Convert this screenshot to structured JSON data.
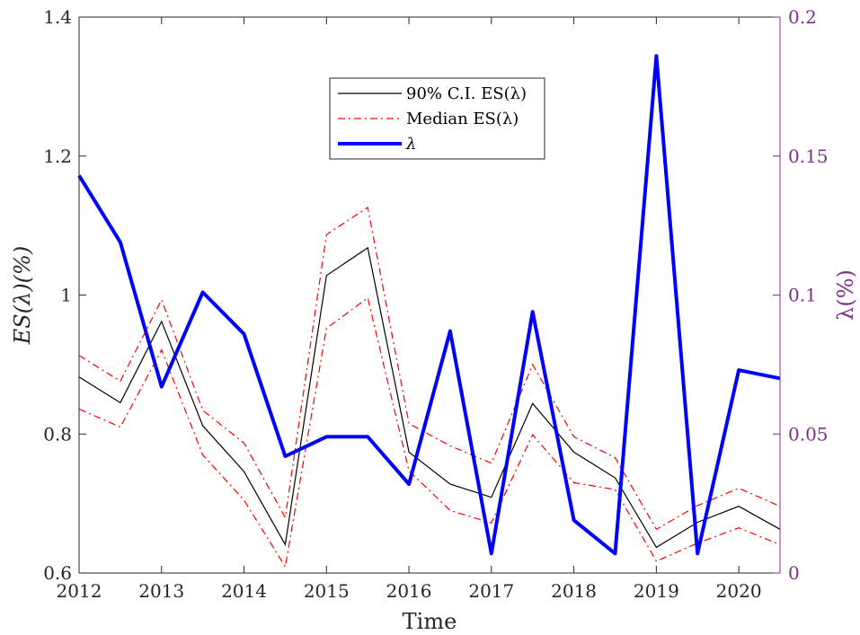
{
  "chart_data": {
    "type": "line",
    "xlabel": "Time",
    "ylabel_left": "ES(λ)(%)",
    "ylabel_right": "λ(%)",
    "x": [
      2012,
      2012.5,
      2013,
      2013.5,
      2014,
      2014.5,
      2015,
      2015.5,
      2016,
      2016.5,
      2017,
      2017.5,
      2018,
      2018.5,
      2019,
      2019.5,
      2020,
      2020.5
    ],
    "xlim": [
      2012,
      2020.5
    ],
    "x_ticks": [
      "2012",
      "2013",
      "2014",
      "2015",
      "2016",
      "2017",
      "2018",
      "2019",
      "2020"
    ],
    "ylim_left": [
      0.6,
      1.4
    ],
    "y_ticks_left": [
      "0.6",
      "0.8",
      "1",
      "1.2",
      "1.4"
    ],
    "ylim_right": [
      0,
      0.2
    ],
    "y_ticks_right": [
      "0",
      "0.05",
      "0.1",
      "0.15",
      "0.2"
    ],
    "legend_position": "top-center",
    "series": [
      {
        "name": "90% C.I. ES(λ)",
        "axis": "left",
        "style": "solid",
        "color": "#000000",
        "values": [
          0.882,
          0.845,
          0.962,
          0.812,
          0.746,
          0.641,
          1.028,
          1.068,
          0.774,
          0.728,
          0.709,
          0.844,
          0.774,
          0.737,
          0.637,
          0.673,
          0.696,
          0.663
        ]
      },
      {
        "name": "Median ES(λ)",
        "axis": "left",
        "style": "dashdot",
        "color": "#ff0000",
        "values": [
          0.913,
          0.876,
          0.993,
          0.834,
          0.787,
          0.68,
          1.087,
          1.126,
          0.815,
          0.783,
          0.758,
          0.9,
          0.796,
          0.766,
          0.663,
          0.697,
          0.722,
          0.696
        ]
      },
      {
        "name": "",
        "axis": "left",
        "style": "dashdot",
        "color": "#ff0000",
        "values": [
          0.836,
          0.81,
          0.921,
          0.77,
          0.705,
          0.609,
          0.952,
          0.996,
          0.747,
          0.69,
          0.672,
          0.799,
          0.73,
          0.72,
          0.617,
          0.643,
          0.665,
          0.641
        ]
      },
      {
        "name": "λ",
        "axis": "right",
        "style": "solid-thick",
        "color": "#0000ff",
        "values": [
          0.143,
          0.119,
          0.067,
          0.101,
          0.086,
          0.042,
          0.049,
          0.049,
          0.032,
          0.087,
          0.007,
          0.094,
          0.019,
          0.007,
          0.186,
          0.007,
          0.073,
          0.07
        ]
      }
    ]
  },
  "colors": {
    "axis_left": "#262626",
    "axis_right": "#7e2f8e"
  }
}
